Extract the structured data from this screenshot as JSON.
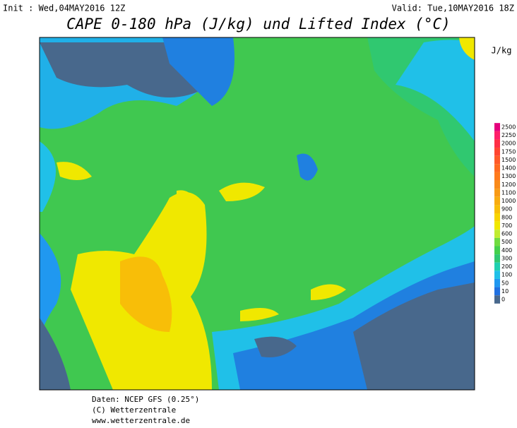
{
  "header": {
    "init": "Init : Wed,04MAY2016 12Z",
    "valid": "Valid: Tue,10MAY2016 18Z",
    "title": "CAPE 0-180 hPa (J/kg) und Lifted Index (°C)"
  },
  "colorbar": {
    "unit": "J/kg",
    "labels": [
      "2500",
      "2250",
      "2000",
      "1750",
      "1500",
      "1400",
      "1300",
      "1200",
      "1100",
      "1000",
      "900",
      "800",
      "700",
      "600",
      "500",
      "400",
      "300",
      "200",
      "100",
      "50",
      "10",
      "0"
    ],
    "colors": [
      "#e4007c",
      "#ff1f6a",
      "#ff2f46",
      "#ff4530",
      "#ff5a28",
      "#ff6a20",
      "#ff7a1c",
      "#f98a1a",
      "#f89a16",
      "#f8ac10",
      "#f8be08",
      "#f8d400",
      "#f0e800",
      "#c0ec30",
      "#70dc40",
      "#44d04c",
      "#30c870",
      "#20d0b0",
      "#20c0e8",
      "#2098f0",
      "#2070e0",
      "#48688c"
    ]
  },
  "footer": {
    "source": "Daten: NCEP GFS (0.25°)",
    "copyright": "(C) Wetterzentrale",
    "url": "www.wetterzentrale.de"
  }
}
